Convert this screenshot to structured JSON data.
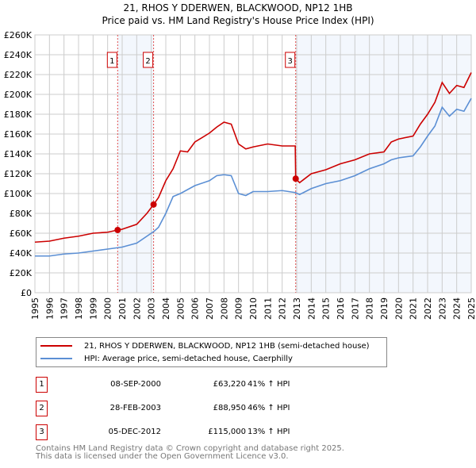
{
  "title": "21, RHOS Y DDERWEN, BLACKWOOD, NP12 1HB",
  "subtitle": "Price paid vs. HM Land Registry's House Price Index (HPI)",
  "chart_data": {
    "type": "line",
    "ylim": [
      0,
      260000
    ],
    "xlim": [
      1995,
      2025
    ],
    "yticks": [
      "£0",
      "£20K",
      "£40K",
      "£60K",
      "£80K",
      "£100K",
      "£120K",
      "£140K",
      "£160K",
      "£180K",
      "£200K",
      "£220K",
      "£240K",
      "£260K"
    ],
    "xticks": [
      "1995",
      "1996",
      "1997",
      "1998",
      "1999",
      "2000",
      "2001",
      "2002",
      "2003",
      "2004",
      "2005",
      "2006",
      "2007",
      "2008",
      "2009",
      "2010",
      "2011",
      "2012",
      "2013",
      "2014",
      "2015",
      "2016",
      "2017",
      "2018",
      "2019",
      "2020",
      "2021",
      "2022",
      "2023",
      "2024",
      "2025"
    ],
    "grid": true,
    "series": [
      {
        "name": "21, RHOS Y DDERWEN, BLACKWOOD, NP12 1HB (semi-detached house)",
        "color": "#cc0000",
        "x": [
          1995,
          1996,
          1997,
          1998,
          1999,
          2000,
          2000.69,
          2001,
          2002,
          2002.7,
          2003.16,
          2003.5,
          2004,
          2004.5,
          2005,
          2005.5,
          2006,
          2007,
          2007.5,
          2008,
          2008.5,
          2009,
          2009.5,
          2010,
          2011,
          2012,
          2012.9,
          2012.93,
          2013.2,
          2014,
          2015,
          2016,
          2017,
          2018,
          2019,
          2019.5,
          2020,
          2021,
          2021.5,
          2022,
          2022.5,
          2023,
          2023.5,
          2024,
          2024.5,
          2025
        ],
        "y": [
          51000,
          52000,
          55000,
          57000,
          60000,
          61000,
          63220,
          64000,
          69000,
          80000,
          88950,
          96000,
          113000,
          125000,
          143000,
          142000,
          152000,
          161000,
          167000,
          172000,
          170000,
          150000,
          145000,
          147000,
          150000,
          148000,
          148000,
          115000,
          111000,
          120000,
          124000,
          130000,
          134000,
          140000,
          142000,
          152000,
          155000,
          158000,
          170000,
          180000,
          192000,
          212000,
          201000,
          209000,
          207000,
          222000
        ]
      },
      {
        "name": "HPI: Average price, semi-detached house, Caerphilly",
        "color": "#5b8fd4",
        "x": [
          1995,
          1996,
          1997,
          1998,
          1999,
          2000,
          2001,
          2002,
          2003.2,
          2003.5,
          2004,
          2004.5,
          2005,
          2006,
          2007,
          2007.5,
          2008,
          2008.5,
          2009,
          2009.5,
          2010,
          2011,
          2012,
          2012.9,
          2013.2,
          2014,
          2015,
          2016,
          2017,
          2018,
          2019,
          2019.5,
          2020,
          2021,
          2021.5,
          2022,
          2022.5,
          2023,
          2023.5,
          2024,
          2024.5,
          2025
        ],
        "y": [
          37000,
          37000,
          39000,
          40000,
          42000,
          44000,
          46000,
          50000,
          62000,
          66000,
          80000,
          97000,
          100000,
          108000,
          113000,
          118000,
          119000,
          118000,
          100000,
          98000,
          102000,
          102000,
          103000,
          101000,
          99000,
          105000,
          110000,
          113000,
          118000,
          125000,
          130000,
          134000,
          136000,
          138000,
          147000,
          158000,
          168000,
          187000,
          178000,
          185000,
          183000,
          196000
        ]
      }
    ],
    "sales": [
      {
        "n": "1",
        "x": 2000.69,
        "y": 63220,
        "date": "08-SEP-2000",
        "price": "£63,220",
        "hpi": "41% ↑ HPI"
      },
      {
        "n": "2",
        "x": 2003.16,
        "y": 88950,
        "date": "28-FEB-2003",
        "price": "£88,950",
        "hpi": "46% ↑ HPI"
      },
      {
        "n": "3",
        "x": 2012.93,
        "y": 115000,
        "date": "05-DEC-2012",
        "price": "£115,000",
        "hpi": "13% ↑ HPI"
      }
    ]
  },
  "footer": [
    "Contains HM Land Registry data © Crown copyright and database right 2025.",
    "This data is licensed under the Open Government Licence v3.0."
  ]
}
